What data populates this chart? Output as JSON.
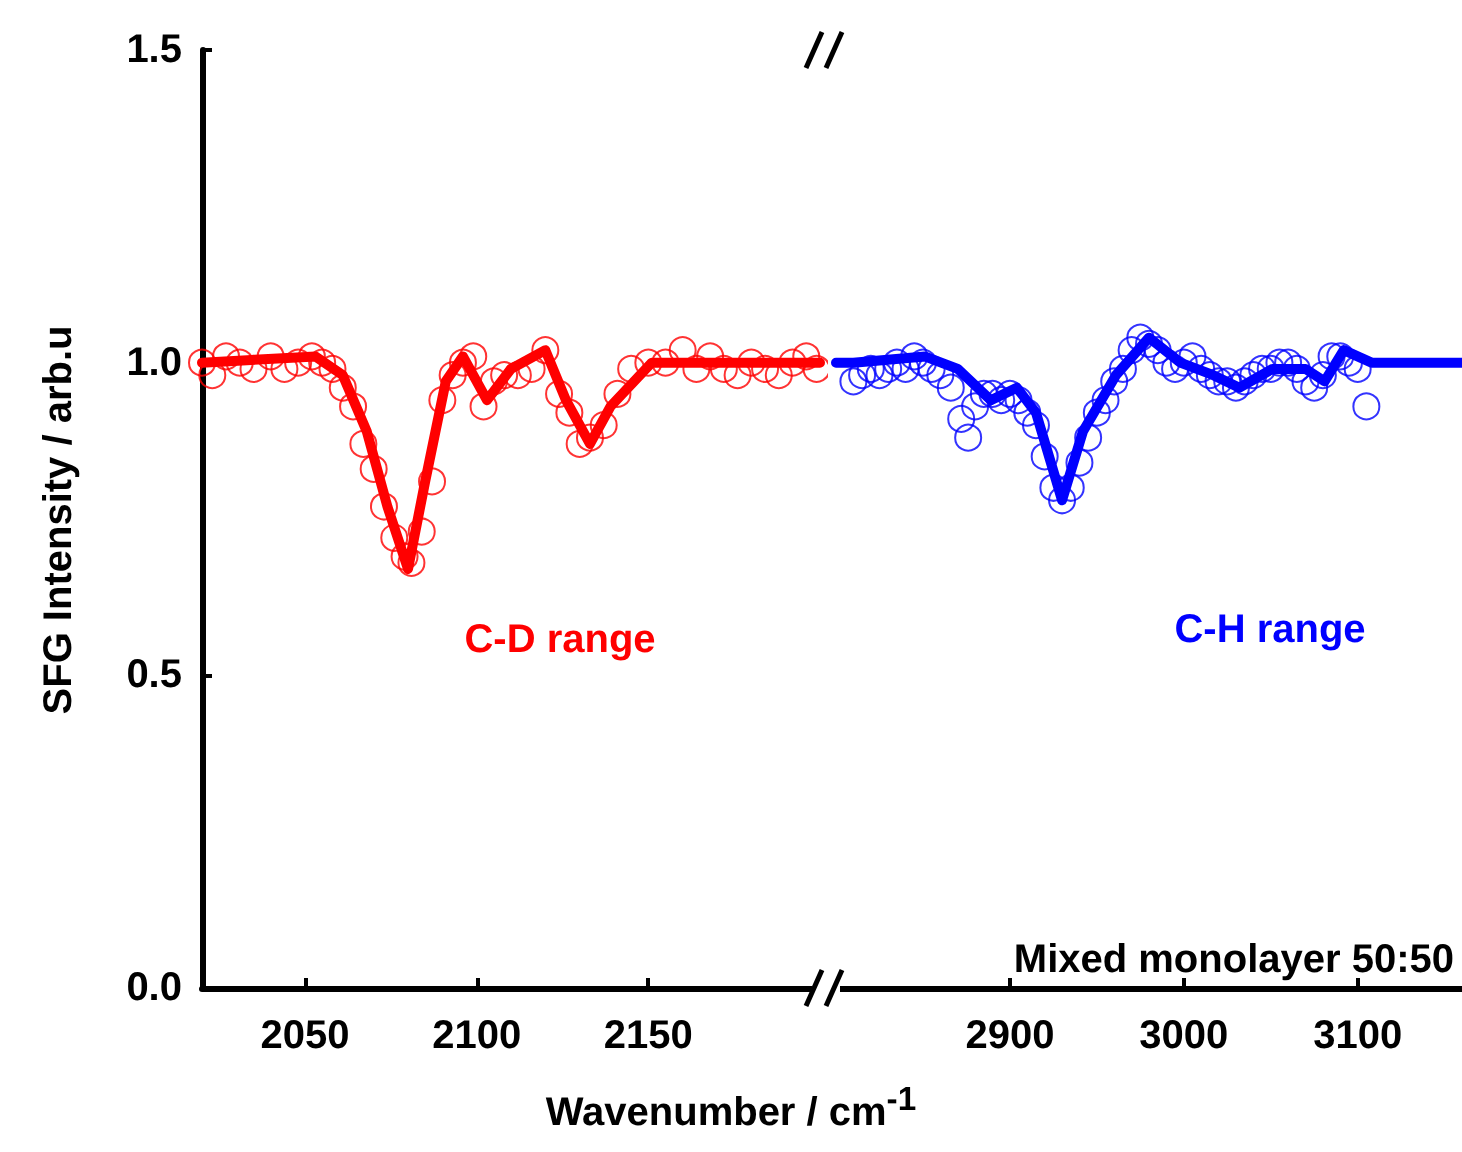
{
  "chart_data": [
    {
      "type": "scatter",
      "ylabel": "SFG Intensity /  arb.u",
      "xlabel": "Wavenumber /  cm$^{-1}$",
      "annotations": [
        "C-D range"
      ],
      "xlim": [
        2020,
        2200
      ],
      "xticks": [
        2050,
        2100,
        2150
      ],
      "ylim": [
        0,
        1.5
      ],
      "yticks": [
        {
          "value": 0,
          "label": "0.0"
        },
        {
          "value": 0.5,
          "label": "0.5"
        },
        {
          "value": 1,
          "label": "1.0"
        },
        {
          "value": 1.5,
          "label": "1.5"
        }
      ],
      "tick_labels": true,
      "series": [
        {
          "marker": "circle",
          "color": "#ff0000",
          "x": [
            2020,
            2023,
            2027,
            2031,
            2035,
            2040,
            2044,
            2048,
            2052,
            2055,
            2058,
            2061,
            2064,
            2067,
            2070,
            2073,
            2076,
            2079,
            2081,
            2084,
            2087,
            2090,
            2093,
            2096,
            2099,
            2102,
            2105,
            2108,
            2112,
            2116,
            2120,
            2124,
            2127,
            2130,
            2133,
            2137,
            2141,
            2145,
            2150,
            2155,
            2160,
            2164,
            2168,
            2172,
            2176,
            2180,
            2184,
            2188,
            2192,
            2196,
            2199
          ],
          "values": [
            1.0,
            0.98,
            1.01,
            1.0,
            0.99,
            1.01,
            0.99,
            1.0,
            1.01,
            1.0,
            0.99,
            0.96,
            0.93,
            0.87,
            0.83,
            0.77,
            0.72,
            0.69,
            0.68,
            0.73,
            0.81,
            0.94,
            0.98,
            1.0,
            1.01,
            0.93,
            0.97,
            0.98,
            0.98,
            0.99,
            1.02,
            0.95,
            0.92,
            0.87,
            0.88,
            0.9,
            0.95,
            0.99,
            1.0,
            1.0,
            1.02,
            0.99,
            1.01,
            0.99,
            0.98,
            1.0,
            0.99,
            0.98,
            1.0,
            1.01,
            0.99
          ]
        },
        {
          "type": "line",
          "marker": "none",
          "color": "#ff0000",
          "x": [
            2020,
            2053,
            2061,
            2068,
            2074,
            2080,
            2085,
            2091,
            2096,
            2103,
            2110,
            2120,
            2126,
            2133,
            2139,
            2151,
            2170,
            2200
          ],
          "values": [
            1.0,
            1.01,
            0.98,
            0.89,
            0.77,
            0.67,
            0.81,
            0.97,
            1.01,
            0.94,
            0.99,
            1.02,
            0.94,
            0.87,
            0.93,
            1.0,
            1.0,
            1.0
          ]
        }
      ]
    },
    {
      "type": "scatter",
      "annotations": [
        "C-H range",
        "Mixed monolayer 50:50"
      ],
      "xlim": [
        2800,
        3160
      ],
      "xticks": [
        2900,
        3000,
        3100
      ],
      "ylim": [
        0,
        1.5
      ],
      "tick_labels": "x",
      "series": [
        {
          "marker": "circle",
          "color": "#0000ff",
          "x": [
            2810,
            2815,
            2820,
            2825,
            2830,
            2835,
            2840,
            2845,
            2850,
            2855,
            2860,
            2866,
            2872,
            2876,
            2880,
            2885,
            2890,
            2895,
            2900,
            2905,
            2910,
            2915,
            2920,
            2925,
            2930,
            2935,
            2940,
            2945,
            2950,
            2955,
            2960,
            2965,
            2970,
            2975,
            2980,
            2985,
            2990,
            2995,
            3000,
            3005,
            3010,
            3015,
            3020,
            3025,
            3030,
            3035,
            3040,
            3045,
            3050,
            3055,
            3060,
            3065,
            3070,
            3075,
            3080,
            3085,
            3090,
            3095,
            3100,
            3105
          ],
          "values": [
            0.97,
            0.98,
            0.99,
            0.98,
            0.99,
            1.0,
            0.99,
            1.01,
            1.0,
            0.99,
            0.98,
            0.96,
            0.91,
            0.88,
            0.93,
            0.95,
            0.95,
            0.94,
            0.95,
            0.94,
            0.92,
            0.9,
            0.85,
            0.8,
            0.78,
            0.8,
            0.84,
            0.88,
            0.92,
            0.94,
            0.97,
            0.99,
            1.02,
            1.04,
            1.03,
            1.02,
            1.0,
            0.99,
            1.0,
            1.01,
            0.99,
            0.98,
            0.97,
            0.97,
            0.96,
            0.97,
            0.98,
            0.99,
            0.99,
            1.0,
            1.0,
            0.99,
            0.97,
            0.96,
            0.98,
            1.01,
            1.01,
            1.0,
            0.99,
            0.93
          ]
        },
        {
          "type": "line",
          "marker": "none",
          "color": "#0000ff",
          "x": [
            2800,
            2810,
            2851,
            2870,
            2889,
            2904,
            2915,
            2930,
            2942,
            2961,
            2980,
            2998,
            3017,
            3032,
            3051,
            3070,
            3081,
            3092,
            3108,
            3160
          ],
          "values": [
            1.0,
            1.0,
            1.01,
            0.99,
            0.94,
            0.96,
            0.92,
            0.78,
            0.89,
            0.98,
            1.04,
            1.0,
            0.98,
            0.96,
            0.99,
            0.99,
            0.97,
            1.02,
            1.0,
            1.0
          ]
        }
      ]
    }
  ]
}
